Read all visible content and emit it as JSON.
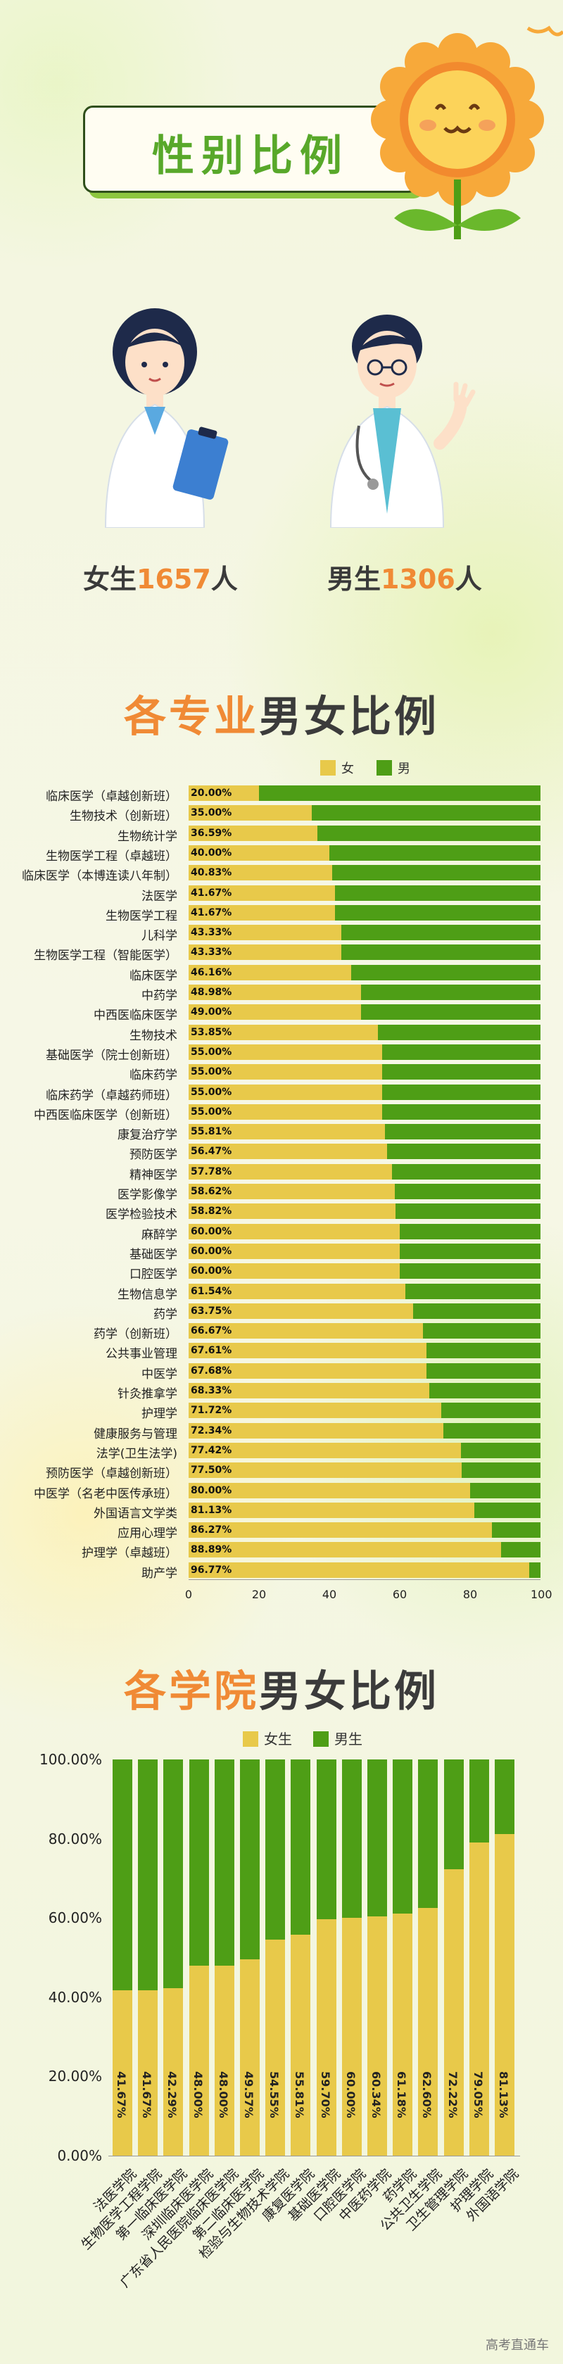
{
  "header": {
    "title": "性别比例"
  },
  "gender": {
    "female_prefix": "女生",
    "female_count": "1657",
    "female_suffix": "人",
    "male_prefix": "男生",
    "male_count": "1306",
    "male_suffix": "人"
  },
  "section1": {
    "title_accent": "各专业",
    "title_rest": "男女比例"
  },
  "section2": {
    "title_accent": "各学院",
    "title_rest": "男女比例"
  },
  "colors": {
    "female": "#e8c94a",
    "male": "#4e9e16",
    "accent": "#f08a35",
    "green_text": "#58a82a"
  },
  "watermark": "高考直通车",
  "chart_data": [
    {
      "type": "bar",
      "orientation": "horizontal",
      "stacked": true,
      "legend": [
        "女",
        "男"
      ],
      "legend_position": "top",
      "xlim": [
        0,
        100
      ],
      "xticks": [
        "0",
        "20",
        "40",
        "60",
        "80",
        "100"
      ],
      "categories": [
        "临床医学（卓越创新班）",
        "生物技术（创新班）",
        "生物统计学",
        "生物医学工程（卓越班）",
        "临床医学（本博连读八年制）",
        "法医学",
        "生物医学工程",
        "儿科学",
        "生物医学工程（智能医学）",
        "临床医学",
        "中药学",
        "中西医临床医学",
        "生物技术",
        "基础医学（院士创新班）",
        "临床药学",
        "临床药学（卓越药师班）",
        "中西医临床医学（创新班）",
        "康复治疗学",
        "预防医学",
        "精神医学",
        "医学影像学",
        "医学检验技术",
        "麻醉学",
        "基础医学",
        "口腔医学",
        "生物信息学",
        "药学",
        "药学（创新班）",
        "公共事业管理",
        "中医学",
        "针灸推拿学",
        "护理学",
        "健康服务与管理",
        "法学(卫生法学)",
        "预防医学（卓越创新班）",
        "中医学（名老中医传承班）",
        "外国语言文学类",
        "应用心理学",
        "护理学（卓越班）",
        "助产学"
      ],
      "female_labels": [
        "20.00%",
        "35.00%",
        "36.59%",
        "40.00%",
        "40.83%",
        "41.67%",
        "41.67%",
        "43.33%",
        "43.33%",
        "46.16%",
        "48.98%",
        "49.00%",
        "53.85%",
        "55.00%",
        "55.00%",
        "55.00%",
        "55.00%",
        "55.81%",
        "56.47%",
        "57.78%",
        "58.62%",
        "58.82%",
        "60.00%",
        "60.00%",
        "60.00%",
        "61.54%",
        "63.75%",
        "66.67%",
        "67.61%",
        "67.68%",
        "68.33%",
        "71.72%",
        "72.34%",
        "77.42%",
        "77.50%",
        "80.00%",
        "81.13%",
        "86.27%",
        "88.89%",
        "96.77%"
      ],
      "series": [
        {
          "name": "女",
          "values": [
            20.0,
            35.0,
            36.59,
            40.0,
            40.83,
            41.67,
            41.67,
            43.33,
            43.33,
            46.16,
            48.98,
            49.0,
            53.85,
            55.0,
            55.0,
            55.0,
            55.0,
            55.81,
            56.47,
            57.78,
            58.62,
            58.82,
            60.0,
            60.0,
            60.0,
            61.54,
            63.75,
            66.67,
            67.61,
            67.68,
            68.33,
            71.72,
            72.34,
            77.42,
            77.5,
            80.0,
            81.13,
            86.27,
            88.89,
            96.77
          ]
        },
        {
          "name": "男",
          "values": [
            80.0,
            65.0,
            63.41,
            60.0,
            59.17,
            58.33,
            58.33,
            56.67,
            56.67,
            53.84,
            51.02,
            51.0,
            46.15,
            45.0,
            45.0,
            45.0,
            45.0,
            44.19,
            43.53,
            42.22,
            41.38,
            41.18,
            40.0,
            40.0,
            40.0,
            38.46,
            36.25,
            33.33,
            32.39,
            32.32,
            31.67,
            28.28,
            27.66,
            22.58,
            22.5,
            20.0,
            18.87,
            13.73,
            11.11,
            3.23
          ]
        }
      ]
    },
    {
      "type": "bar",
      "orientation": "vertical",
      "stacked": true,
      "legend": [
        "女生",
        "男生"
      ],
      "legend_position": "top",
      "ylim": [
        0,
        100
      ],
      "yticks": [
        "0.00%",
        "20.00%",
        "40.00%",
        "60.00%",
        "80.00%",
        "100.00%"
      ],
      "categories": [
        "法医学院",
        "生物医学工程学院",
        "第一临床医学院",
        "深圳临床医学院",
        "广东省人民医院临床医学院",
        "第二临床医学院",
        "检验与生物技术学院",
        "康复医学院",
        "基础医学院",
        "口腔医学院",
        "中医药学院",
        "药学院",
        "公共卫生学院",
        "卫生管理学院",
        "护理学院",
        "外国语学院"
      ],
      "female_labels": [
        "41.67%",
        "41.67%",
        "42.29%",
        "48.00%",
        "48.00%",
        "49.57%",
        "54.55%",
        "55.81%",
        "59.70%",
        "60.00%",
        "60.34%",
        "61.18%",
        "62.60%",
        "72.22%",
        "79.05%",
        "81.13%"
      ],
      "series": [
        {
          "name": "女生",
          "values": [
            41.67,
            41.67,
            42.29,
            48.0,
            48.0,
            49.57,
            54.55,
            55.81,
            59.7,
            60.0,
            60.34,
            61.18,
            62.6,
            72.22,
            79.05,
            81.13
          ]
        },
        {
          "name": "男生",
          "values": [
            58.33,
            58.33,
            57.71,
            52.0,
            52.0,
            50.43,
            45.45,
            44.19,
            40.3,
            40.0,
            39.66,
            38.82,
            37.4,
            27.78,
            20.95,
            18.87
          ]
        }
      ]
    }
  ]
}
